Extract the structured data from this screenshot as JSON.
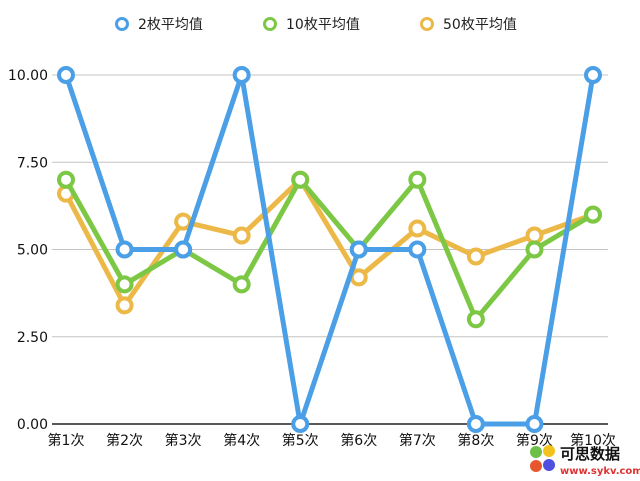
{
  "chart_data": {
    "type": "line",
    "categories": [
      "第1次",
      "第2次",
      "第3次",
      "第4次",
      "第5次",
      "第6次",
      "第7次",
      "第8次",
      "第9次",
      "第10次"
    ],
    "series": [
      {
        "name": "2枚平均值",
        "color": "#4a9fe6",
        "values": [
          10,
          5,
          5,
          10,
          0,
          5,
          5,
          0,
          0,
          10
        ]
      },
      {
        "name": "10枚平均值",
        "color": "#7cc845",
        "values": [
          7,
          4,
          5,
          4,
          7,
          5,
          7,
          3,
          5,
          6
        ]
      },
      {
        "name": "50枚平均值",
        "color": "#ecb948",
        "values": [
          6.6,
          3.4,
          5.8,
          5.4,
          7,
          4.2,
          5.6,
          4.8,
          5.4,
          6
        ]
      }
    ],
    "yticks": [
      "0.00",
      "2.50",
      "5.00",
      "7.50",
      "10.00"
    ],
    "ylim": [
      0,
      10
    ],
    "grid": true,
    "legend": "top"
  },
  "watermark": {
    "title": "可思数据",
    "url": "www.sykv.com"
  }
}
